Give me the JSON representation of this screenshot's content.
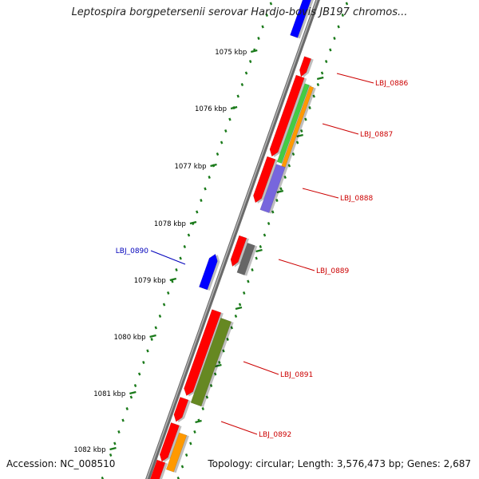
{
  "title": "Leptospira borgpetersenii serovar Hardjo-bovis JB197 chromos...",
  "footer": {
    "accession": "Accession: NC_008510",
    "summary": "Topology: circular; Length: 3,576,473 bp; Genes: 2,687"
  },
  "kbp_labels": [
    "1075 kbp",
    "1076 kbp",
    "1077 kbp",
    "1078 kbp",
    "1079 kbp",
    "1080 kbp",
    "1081 kbp",
    "1082 kbp"
  ],
  "gene_labels": [
    {
      "text": "LBJ_0886",
      "color": "#cc0000"
    },
    {
      "text": "LBJ_0887",
      "color": "#cc0000"
    },
    {
      "text": "LBJ_0888",
      "color": "#cc0000"
    },
    {
      "text": "LBJ_0889",
      "color": "#cc0000"
    },
    {
      "text": "LBJ_0890",
      "color": "#0000bb"
    },
    {
      "text": "LBJ_0891",
      "color": "#cc0000"
    },
    {
      "text": "LBJ_0892",
      "color": "#cc0000"
    }
  ],
  "colors": {
    "backbone": "#8a8a8a",
    "tick": "#1a7a1a",
    "gene_red": "#ff0000",
    "gene_blue": "#0000ff",
    "cog_green": "#44cc44",
    "cog_orange": "#ff9900",
    "cog_purple": "#7766dd",
    "cog_gray": "#666666",
    "cog_olive": "#668822"
  }
}
